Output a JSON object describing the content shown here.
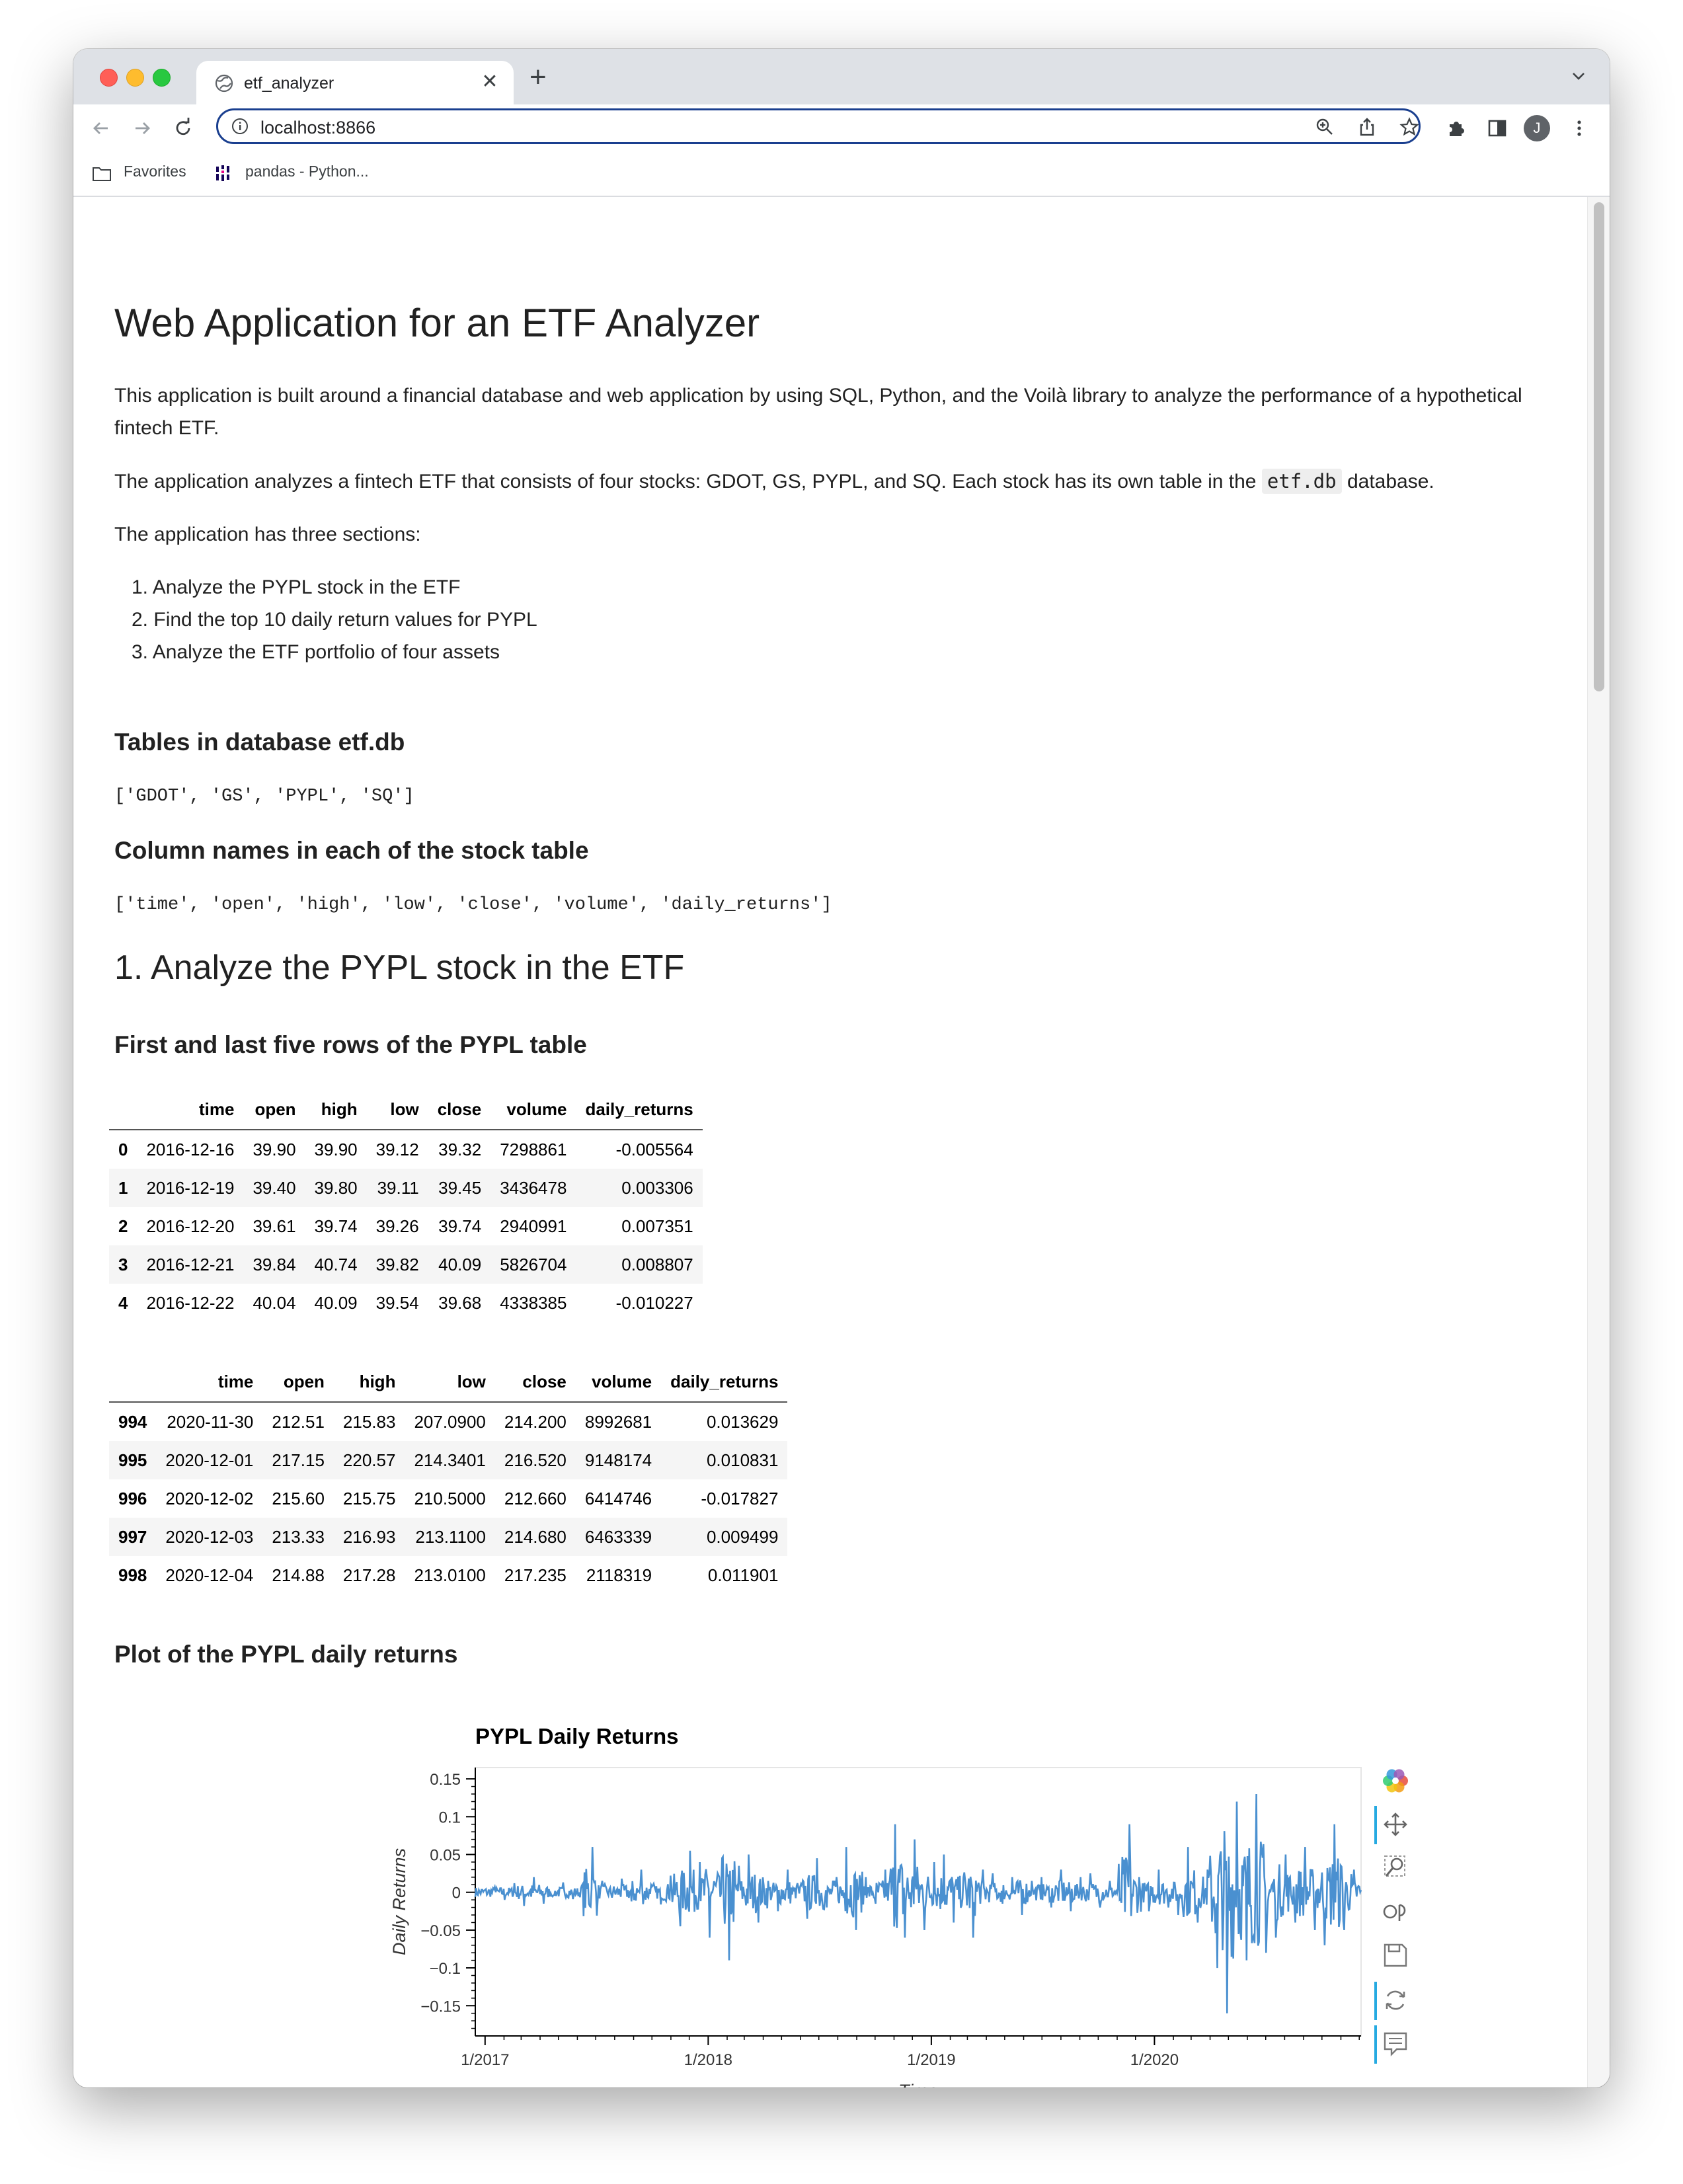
{
  "browser": {
    "tab_title": "etf_analyzer",
    "url": "localhost:8866",
    "avatar_letter": "J",
    "bookmarks": [
      "Favorites",
      "pandas - Python..."
    ]
  },
  "page": {
    "title": "Web Application for an ETF Analyzer",
    "intro": "This application is built around a financial database and web application by using SQL, Python, and the Voilà library to analyze the performance of a hypothetical fintech ETF.",
    "etf_text_before": "The application analyzes a fintech ETF that consists of four stocks: GDOT, GS, PYPL, and SQ. Each stock has its own table in the",
    "etf_code": "etf.db",
    "etf_text_after": "database.",
    "sections_intro": "The application has three sections:",
    "sections": [
      "Analyze the PYPL stock in the ETF",
      "Find the top 10 daily return values for PYPL",
      "Analyze the ETF portfolio of four assets"
    ],
    "section_numbers": [
      "1.",
      "2.",
      "3."
    ],
    "tables_heading": "Tables in database etf.db",
    "tables_list": "['GDOT', 'GS', 'PYPL', 'SQ']",
    "columns_heading": "Column names in each of the stock table",
    "columns_list": "['time', 'open', 'high', 'low', 'close', 'volume', 'daily_returns']",
    "section1_heading": "1. Analyze the PYPL stock in the ETF",
    "rows_heading": "First and last five rows of the PYPL table",
    "plot_heading": "Plot of the PYPL daily returns"
  },
  "head_table": {
    "columns": [
      "",
      "time",
      "open",
      "high",
      "low",
      "close",
      "volume",
      "daily_returns"
    ],
    "rows": [
      [
        "0",
        "2016-12-16",
        "39.90",
        "39.90",
        "39.12",
        "39.32",
        "7298861",
        "-0.005564"
      ],
      [
        "1",
        "2016-12-19",
        "39.40",
        "39.80",
        "39.11",
        "39.45",
        "3436478",
        "0.003306"
      ],
      [
        "2",
        "2016-12-20",
        "39.61",
        "39.74",
        "39.26",
        "39.74",
        "2940991",
        "0.007351"
      ],
      [
        "3",
        "2016-12-21",
        "39.84",
        "40.74",
        "39.82",
        "40.09",
        "5826704",
        "0.008807"
      ],
      [
        "4",
        "2016-12-22",
        "40.04",
        "40.09",
        "39.54",
        "39.68",
        "4338385",
        "-0.010227"
      ]
    ]
  },
  "tail_table": {
    "columns": [
      "",
      "time",
      "open",
      "high",
      "low",
      "close",
      "volume",
      "daily_returns"
    ],
    "rows": [
      [
        "994",
        "2020-11-30",
        "212.51",
        "215.83",
        "207.0900",
        "214.200",
        "8992681",
        "0.013629"
      ],
      [
        "995",
        "2020-12-01",
        "217.15",
        "220.57",
        "214.3401",
        "216.520",
        "9148174",
        "0.010831"
      ],
      [
        "996",
        "2020-12-02",
        "215.60",
        "215.75",
        "210.5000",
        "212.660",
        "6414746",
        "-0.017827"
      ],
      [
        "997",
        "2020-12-03",
        "213.33",
        "216.93",
        "213.1100",
        "214.680",
        "6463339",
        "0.009499"
      ],
      [
        "998",
        "2020-12-04",
        "214.88",
        "217.28",
        "213.0100",
        "217.235",
        "2118319",
        "0.011901"
      ]
    ]
  },
  "chart_data": {
    "type": "line",
    "title": "PYPL Daily Returns",
    "xlabel": "Time",
    "ylabel": "Daily Returns",
    "x_ticks": [
      "1/2017",
      "1/2018",
      "1/2019",
      "1/2020"
    ],
    "x_range": [
      "2016-12-16",
      "2020-12-04"
    ],
    "ylim": [
      -0.19,
      0.165
    ],
    "y_ticks": [
      0.15,
      0.1,
      0.05,
      0,
      -0.05,
      -0.1,
      -0.15
    ],
    "y_tick_labels": [
      "0.15",
      "0.1",
      "0.05",
      "0",
      "−0.05",
      "−0.1",
      "−0.15"
    ],
    "line_color": "#4a90d0",
    "series": [
      {
        "approx_daily_values": [
          -0.006,
          0.003,
          0.007,
          0.009,
          -0.01,
          0.012,
          -0.018,
          0.02,
          -0.015,
          0.008,
          -0.004,
          0.013,
          -0.009,
          0.011,
          0.06,
          -0.02,
          0.015,
          -0.007,
          0.018,
          -0.012,
          0.03,
          -0.025,
          0.01,
          -0.016,
          0.022,
          -0.045,
          0.055,
          -0.03,
          0.04,
          -0.06,
          0.02,
          -0.09,
          0.035,
          -0.02,
          0.05,
          -0.04,
          0.015,
          -0.025,
          0.03,
          -0.018,
          0.012,
          -0.035,
          0.045,
          -0.02,
          0.02,
          -0.03,
          0.06,
          -0.05,
          0.02,
          -0.015,
          0.03,
          -0.02,
          0.09,
          -0.06,
          0.07,
          -0.05,
          0.04,
          -0.03,
          0.05,
          -0.04,
          0.02,
          -0.06,
          0.03,
          -0.02,
          0.025,
          -0.015,
          0.02,
          -0.03,
          0.015,
          -0.01,
          0.02,
          -0.02,
          0.03,
          -0.025,
          0.02,
          -0.015,
          0.025,
          -0.02,
          0.015,
          -0.01,
          0.09,
          -0.05,
          0.02,
          -0.025,
          0.03,
          -0.02,
          0.025,
          -0.03,
          0.06,
          -0.04,
          0.03,
          -0.1,
          0.14,
          -0.16,
          0.12,
          -0.09,
          0.13,
          -0.08,
          0.07,
          -0.06,
          0.05,
          -0.04,
          0.06,
          -0.05,
          0.04,
          -0.07,
          0.09,
          -0.05,
          0.03,
          -0.02
        ]
      }
    ]
  },
  "icons": {
    "tab_favicon": "globe-icon",
    "toolbar": [
      "back-arrow-icon",
      "forward-arrow-icon",
      "reload-icon",
      "zoom-icon",
      "share-icon",
      "bookmark-star-icon",
      "extensions-icon",
      "side-panel-icon",
      "kebab-menu-icon"
    ],
    "plot_tools": [
      "bokeh-logo-icon",
      "pan-icon",
      "box-zoom-icon",
      "wheel-zoom-icon",
      "save-icon",
      "reset-icon",
      "hover-icon"
    ]
  }
}
